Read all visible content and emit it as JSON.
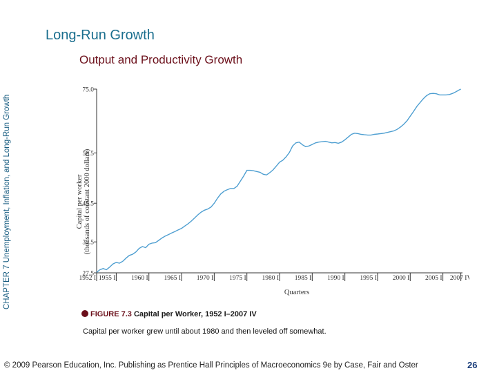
{
  "slide": {
    "title": "Long-Run Growth",
    "subtitle": "Output and Productivity Growth",
    "side_label": "CHAPTER 7  Unemployment, Inflation, and Long-Run Growth",
    "caption_figure": "FIGURE 7.3",
    "caption_title": "Capital per Worker, 1952 I–2007 IV",
    "caption_text": "Capital per worker grew until about 1980 and then leveled off somewhat.",
    "footer": "© 2009 Pearson Education, Inc. Publishing as Prentice Hall   Principles of Macroeconomics 9e by Case, Fair and Oster",
    "page_number": "26"
  },
  "colors": {
    "title": "#1a6e8e",
    "subtitle": "#6b0f1a",
    "line": "#4f9fd1"
  },
  "chart_data": {
    "type": "line",
    "ylabel_line1": "Capital per worker",
    "ylabel_line2": "(thousands of constant 2000 dollars)",
    "xlabel": "Quarters",
    "ylim": [
      27.5,
      75.0
    ],
    "yticks": [
      27.5,
      35.5,
      45.5,
      58.5,
      75.0
    ],
    "ytick_labels": [
      "27.5",
      "35.5",
      "45.5",
      "58.5",
      "75.0"
    ],
    "xlim": [
      1952.0,
      2008.0
    ],
    "xticks": [
      1952,
      1955,
      1960,
      1965,
      1970,
      1975,
      1980,
      1985,
      1990,
      1995,
      2000,
      2005,
      2007.75
    ],
    "xtick_labels": [
      "1952 I",
      "1955 I",
      "1960 I",
      "1965 I",
      "1970 I",
      "1975 I",
      "1980 I",
      "1985 I",
      "1990 I",
      "1995 I",
      "2000 I",
      "2005 I",
      "2007 IV"
    ],
    "series": [
      {
        "x": [
          1952.0,
          1952.5,
          1953.0,
          1953.5,
          1954.0,
          1954.5,
          1955.0,
          1955.5,
          1956.0,
          1956.5,
          1957.0,
          1957.5,
          1958.0,
          1958.5,
          1959.0,
          1959.5,
          1960.0,
          1960.5,
          1961.0,
          1961.5,
          1962.0,
          1962.5,
          1963.0,
          1963.5,
          1964.0,
          1964.5,
          1965.0,
          1965.5,
          1966.0,
          1966.5,
          1967.0,
          1967.5,
          1968.0,
          1968.5,
          1969.0,
          1969.5,
          1970.0,
          1970.5,
          1971.0,
          1971.5,
          1972.0,
          1972.5,
          1973.0,
          1973.5,
          1974.0,
          1974.5,
          1975.0,
          1975.5,
          1976.0,
          1976.5,
          1977.0,
          1977.5,
          1978.0,
          1978.5,
          1979.0,
          1979.5,
          1980.0,
          1980.5,
          1981.0,
          1981.5,
          1982.0,
          1982.5,
          1983.0,
          1983.5,
          1984.0,
          1984.5,
          1985.0,
          1985.5,
          1986.0,
          1986.5,
          1987.0,
          1987.5,
          1988.0,
          1988.5,
          1989.0,
          1989.5,
          1990.0,
          1990.5,
          1991.0,
          1991.5,
          1992.0,
          1992.5,
          1993.0,
          1993.5,
          1994.0,
          1994.5,
          1995.0,
          1995.5,
          1996.0,
          1996.5,
          1997.0,
          1997.5,
          1998.0,
          1998.5,
          1999.0,
          1999.5,
          2000.0,
          2000.5,
          2001.0,
          2001.5,
          2002.0,
          2002.5,
          2003.0,
          2003.5,
          2004.0,
          2004.5,
          2005.0,
          2005.5,
          2006.0,
          2006.5,
          2007.0,
          2007.5,
          2007.75
        ],
        "values": [
          27.6,
          28.3,
          28.6,
          28.3,
          29.0,
          29.8,
          30.2,
          30.0,
          30.5,
          31.3,
          32.0,
          32.3,
          32.9,
          33.8,
          34.3,
          34.0,
          34.9,
          35.2,
          35.3,
          35.9,
          36.5,
          37.0,
          37.4,
          37.8,
          38.2,
          38.6,
          39.0,
          39.6,
          40.2,
          40.9,
          41.7,
          42.5,
          43.2,
          43.7,
          44.0,
          44.5,
          45.5,
          46.8,
          47.9,
          48.6,
          49.0,
          49.3,
          49.3,
          49.9,
          51.2,
          52.5,
          54.0,
          54.0,
          53.9,
          53.7,
          53.5,
          53.0,
          52.8,
          53.4,
          54.1,
          55.1,
          56.1,
          56.6,
          57.5,
          58.6,
          60.3,
          61.1,
          61.3,
          60.6,
          60.1,
          60.3,
          60.7,
          61.1,
          61.3,
          61.4,
          61.5,
          61.3,
          61.1,
          61.2,
          61.0,
          61.3,
          61.9,
          62.6,
          63.3,
          63.6,
          63.5,
          63.3,
          63.2,
          63.1,
          63.1,
          63.3,
          63.4,
          63.5,
          63.6,
          63.8,
          64.0,
          64.2,
          64.6,
          65.2,
          65.9,
          66.8,
          68.0,
          69.2,
          70.5,
          71.5,
          72.5,
          73.3,
          73.8,
          73.9,
          73.8,
          73.5,
          73.5,
          73.5,
          73.6,
          73.9,
          74.3,
          74.8,
          75.0
        ]
      }
    ]
  }
}
